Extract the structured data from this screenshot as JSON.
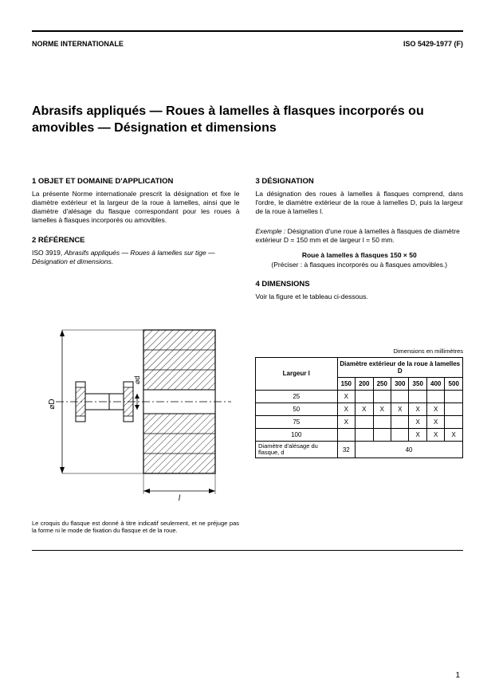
{
  "header": {
    "left": "NORME INTERNATIONALE",
    "right": "ISO 5429-1977 (F)"
  },
  "title": "Abrasifs appliqués — Roues à lamelles à flasques incorporés ou amovibles — Désignation et dimensions",
  "s1": {
    "head": "1  OBJET ET DOMAINE D'APPLICATION",
    "body": "La présente Norme internationale prescrit la désignation et fixe le diamètre extérieur et la largeur de la roue à lamelles, ainsi que le diamètre d'alésage du flasque correspondant pour les roues à lamelles à flasques incorporés ou amovibles."
  },
  "s2": {
    "head": "2  RÉFÉRENCE",
    "body_pre": "ISO 3919, ",
    "body_em": "Abrasifs appliqués — Roues à lamelles sur tige — Désignation et dimensions."
  },
  "s3": {
    "head": "3  DÉSIGNATION",
    "body": "La désignation des roues à lamelles à flasques comprend, dans l'ordre, le diamètre extérieur de la roue à lamelles D, puis la largeur de la roue à lamelles l.",
    "ex_pre": "Exemple : ",
    "ex_body": "Désignation d'une roue à lamelles à flasques de diamètre extérieur D = 150 mm et de largeur l = 50 mm.",
    "bold": "Roue à lamelles à flasques 150 × 50",
    "paren": "(Préciser : à flasques incorporés ou à flasques amovibles.)"
  },
  "s4": {
    "head": "4  DIMENSIONS",
    "body": "Voir la figure et le tableau ci-dessous."
  },
  "table": {
    "caption": "Dimensions en millimètres",
    "row_head": "Largeur l",
    "col_head": "Diamètre extérieur de la roue à lamelles D",
    "cols": [
      "150",
      "200",
      "250",
      "300",
      "350",
      "400",
      "500"
    ],
    "rows": [
      {
        "label": "25",
        "marks": [
          "X",
          "",
          "",
          "",
          "",
          "",
          ""
        ]
      },
      {
        "label": "50",
        "marks": [
          "X",
          "X",
          "X",
          "X",
          "X",
          "X",
          ""
        ]
      },
      {
        "label": "75",
        "marks": [
          "X",
          "",
          "",
          "",
          "X",
          "X",
          ""
        ]
      },
      {
        "label": "100",
        "marks": [
          "",
          "",
          "",
          "",
          "X",
          "X",
          "X"
        ]
      }
    ],
    "bore_label": "Diamètre d'alésage du flasque, d",
    "bore_vals": [
      "32",
      "40"
    ],
    "bore_spans": [
      1,
      6
    ]
  },
  "figure": {
    "label_D": "⌀D",
    "label_d": "⌀d",
    "label_l": "l",
    "caption": "Le croquis du flasque est donné à titre indicatif seulement, et ne préjuge pas la forme ni le mode de fixation du flasque et de la roue."
  },
  "page": "1",
  "colors": {
    "text": "#000000",
    "bg": "#ffffff",
    "hatch": "#555555"
  }
}
